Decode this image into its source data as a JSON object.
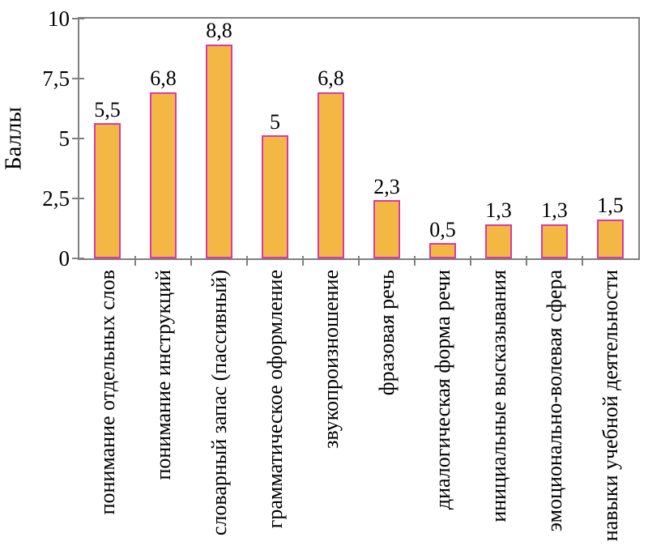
{
  "chart_data": {
    "type": "bar",
    "title": "",
    "xlabel": "",
    "ylabel": "Баллы",
    "ylim": [
      0,
      10
    ],
    "grid": false,
    "legend": "none",
    "y_tick_values": [
      0,
      2.5,
      5,
      7.5,
      10
    ],
    "y_tick_labels": [
      "0",
      "2,5",
      "5",
      "7,5",
      "10"
    ],
    "categories": [
      "понимание отдельных слов",
      "понимание инструкций",
      "словарный запас (пассивный)",
      "грамматическое оформление",
      "звукопроизношение",
      "фразовая речь",
      "диалогическая форма речи",
      "инициальные высказывания",
      "эмоционально-волевая сфера",
      "навыки учебной деятельности"
    ],
    "values": [
      5.5,
      6.8,
      8.8,
      5,
      6.8,
      2.3,
      0.5,
      1.3,
      1.3,
      1.5
    ],
    "value_labels": [
      "5,5",
      "6,8",
      "8,8",
      "5",
      "6,8",
      "2,3",
      "0,5",
      "1,3",
      "1,3",
      "1,5"
    ],
    "colors": {
      "bar_fill": "#F3B843",
      "bar_border": "#D939A8",
      "axis": "#808080",
      "text": "#000000"
    }
  }
}
